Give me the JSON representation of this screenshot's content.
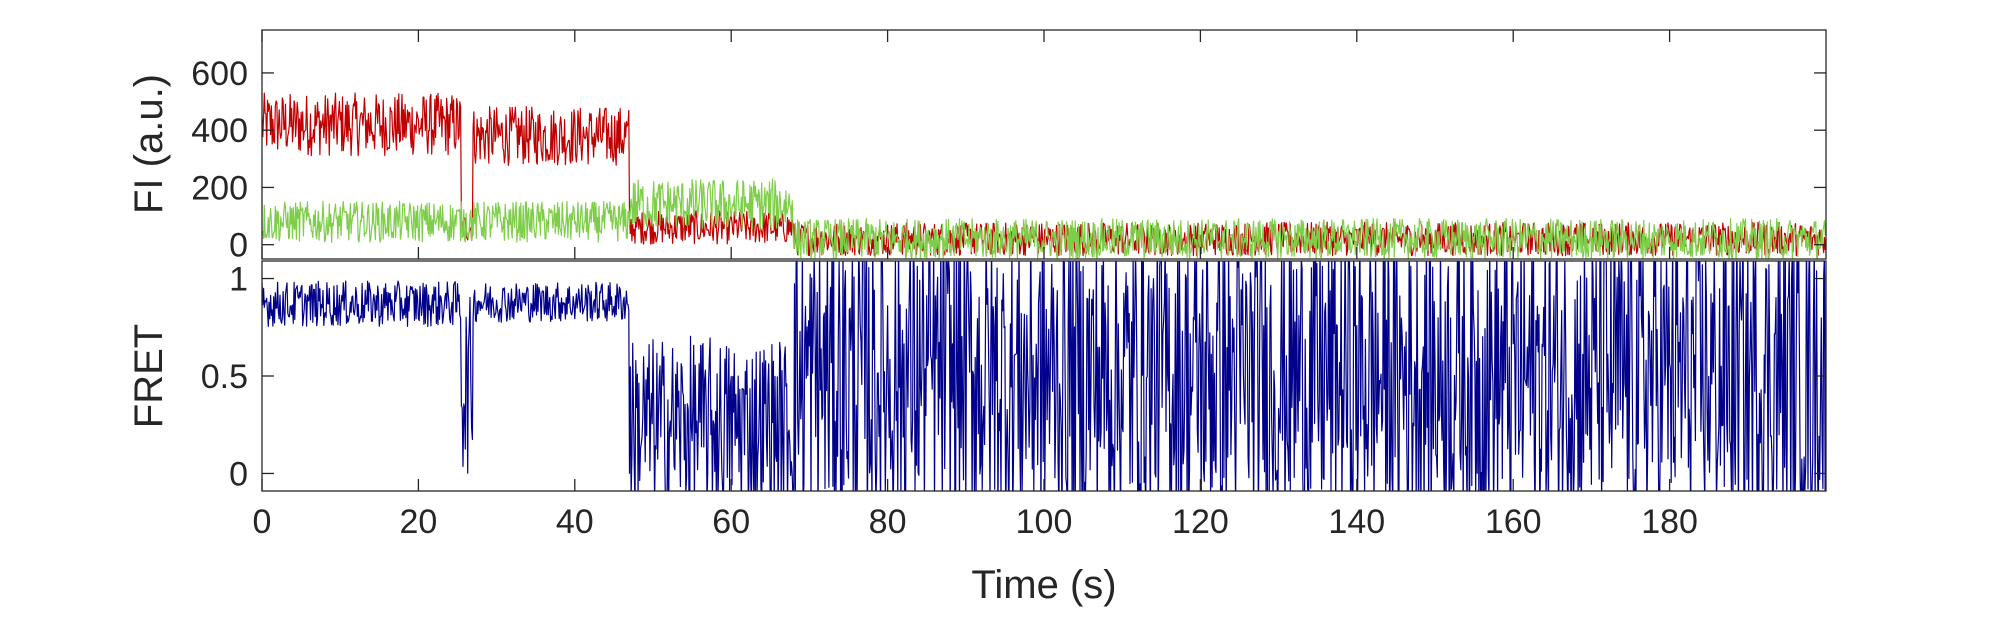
{
  "chart_data": [
    {
      "type": "line",
      "ylabel": "FI (a.u.)",
      "xlim": [
        0,
        200
      ],
      "ylim": [
        -50,
        750
      ],
      "yticks": [
        0,
        200,
        400,
        600
      ],
      "grid": false,
      "series": [
        {
          "color": "#c00000",
          "segments": [
            {
              "x0": 0,
              "x1": 25.5,
              "mean": 420,
              "noise": 85
            },
            {
              "x0": 25.5,
              "x1": 27,
              "mean": 60,
              "noise": 40
            },
            {
              "x0": 27,
              "x1": 47,
              "mean": 380,
              "noise": 80
            },
            {
              "x0": 47,
              "x1": 68,
              "mean": 60,
              "noise": 45
            },
            {
              "x0": 68,
              "x1": 200,
              "mean": 20,
              "noise": 45
            }
          ]
        },
        {
          "color": "#7fce4a",
          "segments": [
            {
              "x0": 0,
              "x1": 47,
              "mean": 80,
              "noise": 55
            },
            {
              "x0": 47,
              "x1": 68,
              "mean": 140,
              "noise": 70
            },
            {
              "x0": 68,
              "x1": 200,
              "mean": 20,
              "noise": 55
            }
          ]
        }
      ]
    },
    {
      "type": "line",
      "xlabel": "Time (s)",
      "ylabel": "FRET",
      "xlim": [
        0,
        200
      ],
      "ylim": [
        -0.09,
        1.09
      ],
      "yticks": [
        0,
        0.5,
        1
      ],
      "ytick_labels": [
        "0",
        "0.5",
        "1"
      ],
      "xticks": [
        0,
        20,
        40,
        60,
        80,
        100,
        120,
        140,
        160,
        180
      ],
      "grid": false,
      "series": [
        {
          "color": "#00008b",
          "segments": [
            {
              "x0": 0,
              "x1": 25.5,
              "mean": 0.87,
              "noise": 0.09
            },
            {
              "x0": 25.5,
              "x1": 27,
              "mean": 0.45,
              "noise": 0.35
            },
            {
              "x0": 27,
              "x1": 47,
              "mean": 0.88,
              "noise": 0.08
            },
            {
              "x0": 47,
              "x1": 68,
              "mean": 0.25,
              "noise": 0.35
            },
            {
              "x0": 68,
              "x1": 200,
              "mean": 0.5,
              "noise": 0.6
            }
          ]
        }
      ]
    }
  ]
}
